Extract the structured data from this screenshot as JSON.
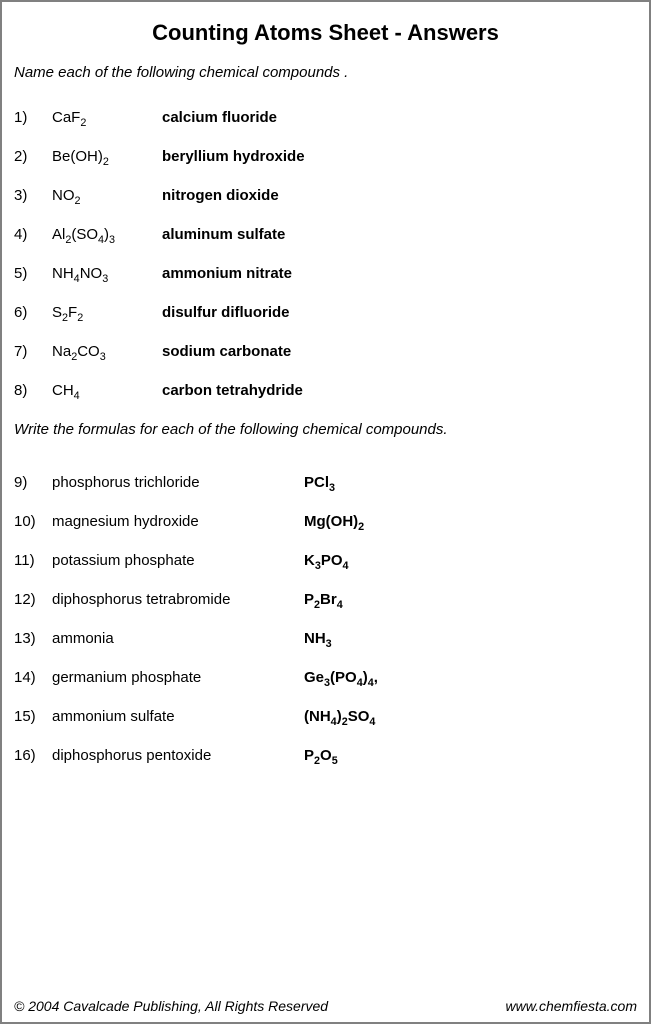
{
  "title": "Counting Atoms Sheet - Answers",
  "instruction1": "Name each of the following chemical compounds .",
  "instruction2": "Write the formulas for each of the following chemical compounds.",
  "part1": [
    {
      "n": "1)",
      "formula": "CaF<sub>2</sub>",
      "name": "calcium fluoride"
    },
    {
      "n": "2)",
      "formula": "Be(OH)<sub>2</sub>",
      "name": "beryllium hydroxide"
    },
    {
      "n": "3)",
      "formula": "NO<sub>2</sub>",
      "name": "nitrogen dioxide"
    },
    {
      "n": "4)",
      "formula": "Al<sub>2</sub>(SO<sub>4</sub>)<sub>3</sub>",
      "name": "aluminum sulfate"
    },
    {
      "n": "5)",
      "formula": "NH<sub>4</sub>NO<sub>3</sub>",
      "name": "ammonium nitrate"
    },
    {
      "n": "6)",
      "formula": "S<sub>2</sub>F<sub>2</sub>",
      "name": "disulfur difluoride"
    },
    {
      "n": "7)",
      "formula": "Na<sub>2</sub>CO<sub>3</sub>",
      "name": "sodium carbonate"
    },
    {
      "n": "8)",
      "formula": "CH<sub>4</sub>",
      "name": "carbon tetrahydride"
    }
  ],
  "part2": [
    {
      "n": "9)",
      "compound": "phosphorus trichloride",
      "formula": "PCl<sub>3</sub>"
    },
    {
      "n": "10)",
      "compound": "magnesium hydroxide",
      "formula": "Mg(OH)<sub>2</sub>"
    },
    {
      "n": "11)",
      "compound": "potassium phosphate",
      "formula": "K<sub>3</sub>PO<sub>4</sub>"
    },
    {
      "n": "12)",
      "compound": "diphosphorus tetrabromide",
      "formula": "P<sub>2</sub>Br<sub>4</sub>"
    },
    {
      "n": "13)",
      "compound": "ammonia",
      "formula": "NH<sub>3</sub>"
    },
    {
      "n": "14)",
      "compound": "germanium phosphate",
      "formula": "Ge<sub>3</sub>(PO<sub>4</sub>)<sub>4</sub>,"
    },
    {
      "n": "15)",
      "compound": "ammonium sulfate",
      "formula": "(NH<sub>4</sub>)<sub>2</sub>SO<sub>4</sub>"
    },
    {
      "n": "16)",
      "compound": "diphosphorus pentoxide",
      "formula": "P<sub>2</sub>O<sub>5</sub>"
    }
  ],
  "footer_left": "© 2004 Cavalcade Publishing, All Rights Reserved",
  "footer_right": "www.chemfiesta.com"
}
